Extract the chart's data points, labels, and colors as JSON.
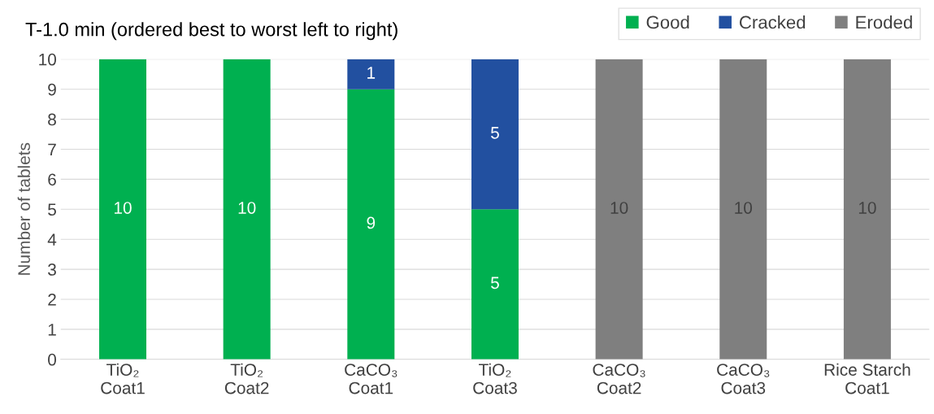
{
  "chart_data": {
    "type": "bar",
    "stacked": true,
    "title": "T-1.0 min (ordered best to worst left to right)",
    "ylabel": "Number of tablets",
    "categories": [
      "TiO₂\nCoat1",
      "TiO₂\nCoat2",
      "CaCO₃\nCoat1",
      "TiO₂\nCoat3",
      "CaCO₃\nCoat2",
      "CaCO₃\nCoat3",
      "Rice Starch\nCoat1"
    ],
    "series": [
      {
        "name": "Good",
        "color": "#00b050",
        "values": [
          10,
          10,
          9,
          5,
          0,
          0,
          0
        ],
        "value_labels": [
          "10",
          "10",
          "9",
          "5",
          null,
          null,
          null
        ]
      },
      {
        "name": "Cracked",
        "color": "#2250a0",
        "values": [
          0,
          0,
          1,
          5,
          0,
          0,
          0
        ],
        "value_labels": [
          null,
          null,
          "1",
          "5",
          null,
          null,
          null
        ]
      },
      {
        "name": "Eroded",
        "color": "#7f7f7f",
        "values": [
          0,
          0,
          0,
          0,
          10,
          10,
          10
        ],
        "value_labels": [
          null,
          null,
          null,
          null,
          "10",
          "10",
          "10"
        ]
      }
    ],
    "ylim": [
      0,
      10
    ],
    "yticks": [
      0,
      1,
      2,
      3,
      4,
      5,
      6,
      7,
      8,
      9,
      10
    ],
    "grid": "y",
    "legend": "top right"
  }
}
